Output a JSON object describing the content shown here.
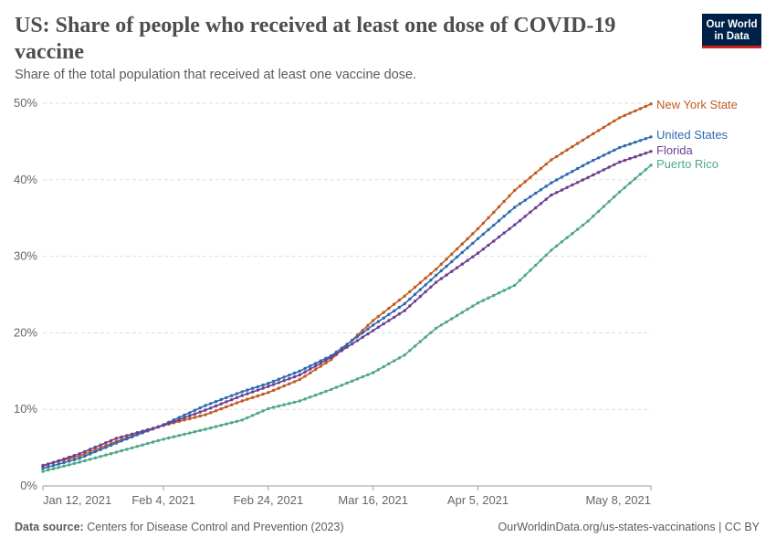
{
  "header": {
    "title": "US: Share of people who received at least one dose of COVID-19 vaccine",
    "subtitle": "Share of the total population that received at least one vaccine dose.",
    "logo_line1": "Our World",
    "logo_line2": "in Data"
  },
  "footer": {
    "source_label": "Data source:",
    "source_text": "Centers for Disease Control and Prevention (2023)",
    "url_text": "OurWorldinData.org/us-states-vaccinations | CC BY"
  },
  "colors": {
    "New York State": "#c15b20",
    "United States": "#2d6ab0",
    "Florida": "#6d3e91",
    "Puerto Rico": "#4fa78a",
    "grid": "#dddddd",
    "axis": "#999999"
  },
  "chart_data": {
    "type": "line",
    "x_start": "2021-01-12",
    "x_end": "2021-05-08",
    "ylim": [
      0,
      50
    ],
    "y_ticks": [
      0,
      10,
      20,
      30,
      40,
      50
    ],
    "y_tick_labels": [
      "0%",
      "10%",
      "20%",
      "30%",
      "40%",
      "50%"
    ],
    "x_ticks": [
      "2021-01-12",
      "2021-02-04",
      "2021-02-24",
      "2021-03-16",
      "2021-04-05",
      "2021-05-08"
    ],
    "x_tick_labels": [
      "Jan 12, 2021",
      "Feb 4, 2021",
      "Feb 24, 2021",
      "Mar 16, 2021",
      "Apr 5, 2021",
      "May 8, 2021"
    ],
    "grid": "horizontal dashed",
    "legend": "labels at line ends",
    "series": [
      {
        "name": "New York State",
        "points": [
          [
            "2021-01-12",
            2.7
          ],
          [
            "2021-01-19",
            3.9
          ],
          [
            "2021-01-26",
            5.8
          ],
          [
            "2021-02-04",
            7.9
          ],
          [
            "2021-02-12",
            9.3
          ],
          [
            "2021-02-19",
            11.1
          ],
          [
            "2021-02-24",
            12.2
          ],
          [
            "2021-03-02",
            13.9
          ],
          [
            "2021-03-08",
            16.5
          ],
          [
            "2021-03-16",
            21.6
          ],
          [
            "2021-03-22",
            24.8
          ],
          [
            "2021-03-28",
            28.3
          ],
          [
            "2021-04-05",
            33.6
          ],
          [
            "2021-04-12",
            38.6
          ],
          [
            "2021-04-19",
            42.6
          ],
          [
            "2021-04-26",
            45.6
          ],
          [
            "2021-05-02",
            48.1
          ],
          [
            "2021-05-08",
            49.9
          ]
        ]
      },
      {
        "name": "United States",
        "points": [
          [
            "2021-01-12",
            2.3
          ],
          [
            "2021-01-19",
            3.6
          ],
          [
            "2021-01-26",
            5.6
          ],
          [
            "2021-02-04",
            8.0
          ],
          [
            "2021-02-12",
            10.5
          ],
          [
            "2021-02-19",
            12.3
          ],
          [
            "2021-02-24",
            13.4
          ],
          [
            "2021-03-02",
            15.0
          ],
          [
            "2021-03-08",
            17.0
          ],
          [
            "2021-03-16",
            21.0
          ],
          [
            "2021-03-22",
            23.8
          ],
          [
            "2021-03-28",
            27.5
          ],
          [
            "2021-04-05",
            32.3
          ],
          [
            "2021-04-12",
            36.4
          ],
          [
            "2021-04-19",
            39.6
          ],
          [
            "2021-04-26",
            42.2
          ],
          [
            "2021-05-02",
            44.2
          ],
          [
            "2021-05-08",
            45.6
          ]
        ]
      },
      {
        "name": "Florida",
        "points": [
          [
            "2021-01-12",
            2.6
          ],
          [
            "2021-01-19",
            4.2
          ],
          [
            "2021-01-26",
            6.2
          ],
          [
            "2021-02-04",
            7.9
          ],
          [
            "2021-02-12",
            9.9
          ],
          [
            "2021-02-19",
            11.8
          ],
          [
            "2021-02-24",
            13.0
          ],
          [
            "2021-03-02",
            14.5
          ],
          [
            "2021-03-08",
            16.8
          ],
          [
            "2021-03-16",
            20.3
          ],
          [
            "2021-03-22",
            22.9
          ],
          [
            "2021-03-28",
            26.6
          ],
          [
            "2021-04-05",
            30.4
          ],
          [
            "2021-04-12",
            34.1
          ],
          [
            "2021-04-19",
            38.0
          ],
          [
            "2021-04-26",
            40.3
          ],
          [
            "2021-05-02",
            42.3
          ],
          [
            "2021-05-08",
            43.7
          ]
        ]
      },
      {
        "name": "Puerto Rico",
        "points": [
          [
            "2021-01-12",
            1.9
          ],
          [
            "2021-01-19",
            3.1
          ],
          [
            "2021-01-26",
            4.4
          ],
          [
            "2021-02-04",
            6.1
          ],
          [
            "2021-02-12",
            7.4
          ],
          [
            "2021-02-19",
            8.6
          ],
          [
            "2021-02-24",
            10.1
          ],
          [
            "2021-03-02",
            11.1
          ],
          [
            "2021-03-08",
            12.6
          ],
          [
            "2021-03-16",
            14.8
          ],
          [
            "2021-03-22",
            17.1
          ],
          [
            "2021-03-28",
            20.6
          ],
          [
            "2021-04-05",
            23.9
          ],
          [
            "2021-04-12",
            26.2
          ],
          [
            "2021-04-19",
            30.8
          ],
          [
            "2021-04-26",
            34.6
          ],
          [
            "2021-05-02",
            38.4
          ],
          [
            "2021-05-08",
            41.9
          ]
        ]
      }
    ]
  }
}
